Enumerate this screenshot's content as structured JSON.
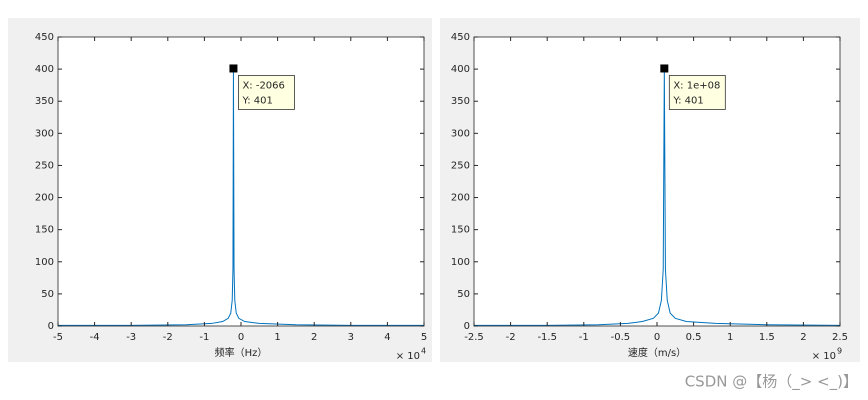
{
  "chart_data": [
    {
      "type": "line",
      "xlabel": "频率（Hz）",
      "x_multiplier": "× 10",
      "x_multiplier_exp": "4",
      "x": [
        -5,
        -3,
        -1.5,
        -0.8,
        -0.5,
        -0.35,
        -0.28,
        -0.24,
        -0.22,
        -0.2066,
        -0.19,
        -0.17,
        -0.13,
        -0.06,
        0.1,
        0.5,
        1.5,
        3,
        5
      ],
      "values": [
        1,
        1,
        2,
        4,
        7,
        12,
        20,
        40,
        88,
        401,
        88,
        40,
        20,
        12,
        7,
        4,
        2,
        1,
        1
      ],
      "color": "#0072bd",
      "xlim": [
        -5,
        5
      ],
      "xticks": [
        -5,
        -4,
        -3,
        -2,
        -1,
        0,
        1,
        2,
        3,
        4,
        5
      ],
      "ylim": [
        0,
        450
      ],
      "yticks": [
        0,
        50,
        100,
        150,
        200,
        250,
        300,
        350,
        400,
        450
      ],
      "datatip": {
        "x": -0.2066,
        "y": 401,
        "label_x": "X: -2066",
        "label_y": "Y: 401"
      }
    },
    {
      "type": "line",
      "xlabel": "速度（m/s）",
      "x_multiplier": "× 10",
      "x_multiplier_exp": "9",
      "x": [
        -2.5,
        -1.5,
        -0.8,
        -0.4,
        -0.2,
        -0.05,
        0.02,
        0.06,
        0.085,
        0.1,
        0.115,
        0.14,
        0.18,
        0.25,
        0.4,
        0.8,
        1.5,
        2.5
      ],
      "values": [
        1,
        1,
        2,
        4,
        7,
        12,
        20,
        40,
        88,
        401,
        88,
        40,
        20,
        12,
        7,
        4,
        2,
        1
      ],
      "color": "#0072bd",
      "xlim": [
        -2.5,
        2.5
      ],
      "xticks": [
        -2.5,
        -2,
        -1.5,
        -1,
        -0.5,
        0,
        0.5,
        1,
        1.5,
        2,
        2.5
      ],
      "ylim": [
        0,
        450
      ],
      "yticks": [
        0,
        50,
        100,
        150,
        200,
        250,
        300,
        350,
        400,
        450
      ],
      "datatip": {
        "x": 0.1,
        "y": 401,
        "label_x": "X: 1e+08",
        "label_y": "Y: 401"
      }
    }
  ],
  "watermark": "CSDN @【杨（_> <_)】"
}
